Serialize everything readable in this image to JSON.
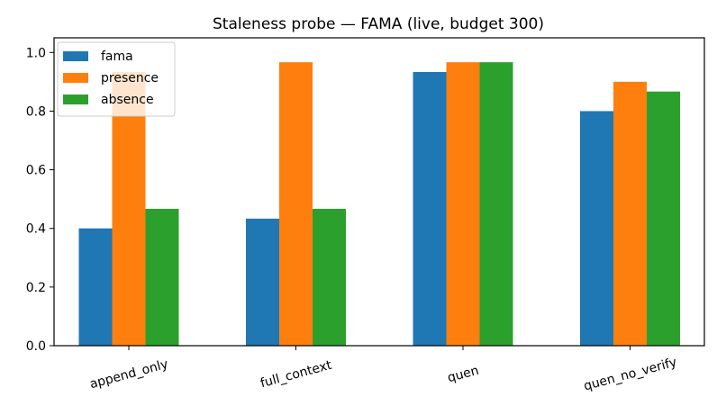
{
  "chart_data": {
    "type": "bar",
    "title": "Staleness probe — FAMA (live, budget 300)",
    "xlabel": "",
    "ylabel": "",
    "categories": [
      "append_only",
      "full_context",
      "quen",
      "quen_no_verify"
    ],
    "series": [
      {
        "name": "fama",
        "color": "#1f77b4",
        "values": [
          0.4,
          0.4333,
          0.9333,
          0.8
        ]
      },
      {
        "name": "presence",
        "color": "#ff7f0e",
        "values": [
          0.9333,
          0.9667,
          0.9667,
          0.9
        ]
      },
      {
        "name": "absence",
        "color": "#2ca02c",
        "values": [
          0.4667,
          0.4667,
          0.9667,
          0.8667
        ]
      }
    ],
    "ylim": [
      0,
      1.05
    ],
    "yticks": [
      "0.0",
      "0.2",
      "0.4",
      "0.6",
      "0.8",
      "1.0"
    ],
    "grid": false,
    "legend": "top-left",
    "x_tick_rotation_deg": 15
  }
}
